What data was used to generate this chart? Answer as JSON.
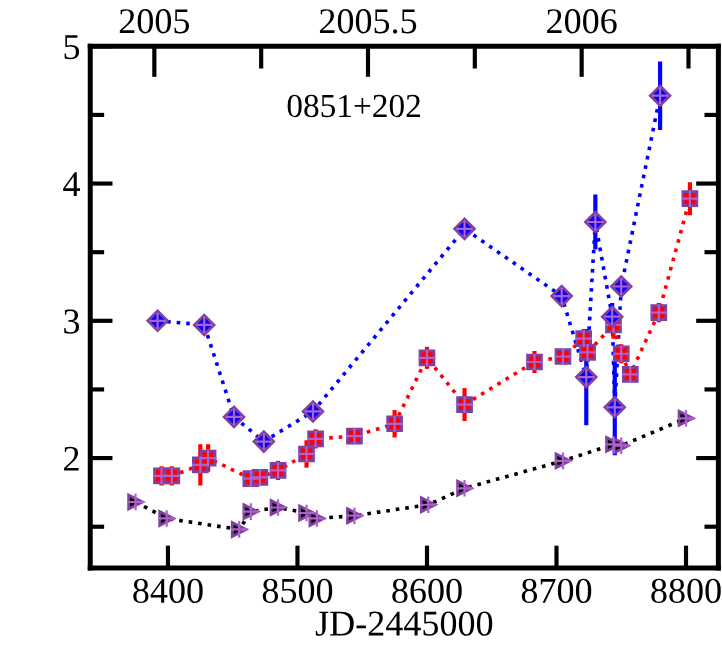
{
  "chart_data": {
    "type": "line",
    "xlabel": "JD-2445000",
    "annotations": [
      "0851+202"
    ],
    "xlim": [
      8340,
      8825
    ],
    "xticks": [
      8400,
      8500,
      8600,
      8700,
      8800
    ],
    "ylim": [
      1.2,
      5
    ],
    "yticks": [
      {
        "value": 1.5,
        "label": null
      },
      2,
      {
        "value": 2.5,
        "label": null
      },
      3,
      {
        "value": 3.5,
        "label": null
      },
      4,
      {
        "value": 4.5,
        "label": null
      },
      5
    ],
    "x2lim": [
      2004.85,
      2006.32
    ],
    "x2ticks": [
      2005,
      {
        "value": 2005.25,
        "label": null
      },
      2005.5,
      {
        "value": 2005.75,
        "label": null
      },
      2006,
      {
        "value": 2006.25,
        "label": null
      }
    ],
    "line_style": "dotted",
    "grid": false,
    "legend": false,
    "series": [
      {
        "color": "#0000ff",
        "marker": "diamond",
        "x": [
          8392,
          8428,
          8451,
          8474,
          8512,
          8629,
          8704,
          8723,
          8730,
          8743,
          8745,
          8750,
          8780
        ],
        "values": [
          3.0,
          2.97,
          2.3,
          2.12,
          2.34,
          3.67,
          3.18,
          2.59,
          3.72,
          3.03,
          2.37,
          3.25,
          4.64
        ],
        "errors": [
          null,
          null,
          null,
          null,
          null,
          null,
          null,
          0.35,
          0.2,
          0.1,
          0.35,
          null,
          0.25
        ]
      },
      {
        "color": "#ff0000",
        "marker": "square",
        "x": [
          8395,
          8403,
          8425,
          8431,
          8464,
          8471,
          8485,
          8507,
          8514,
          8544,
          8575,
          8600,
          8629,
          8683,
          8705,
          8721,
          8724,
          8744,
          8750,
          8757,
          8779,
          8803
        ],
        "values": [
          1.87,
          1.87,
          1.95,
          2.0,
          1.85,
          1.86,
          1.91,
          2.03,
          2.14,
          2.16,
          2.25,
          2.73,
          2.39,
          2.7,
          2.74,
          2.87,
          2.77,
          2.97,
          2.76,
          2.61,
          3.06,
          3.89
        ],
        "errors": [
          0.07,
          0.07,
          0.15,
          0.1,
          null,
          null,
          0.07,
          0.1,
          0.07,
          null,
          0.1,
          0.08,
          0.12,
          0.08,
          null,
          0.07,
          0.07,
          0.1,
          0.07,
          null,
          0.07,
          0.12
        ]
      },
      {
        "color": "#000000",
        "marker": "triangle",
        "x": [
          8375,
          8399,
          8455,
          8464,
          8485,
          8507,
          8515,
          8544,
          8601,
          8629,
          8705,
          8744,
          8750,
          8800
        ],
        "values": [
          1.68,
          1.56,
          1.48,
          1.61,
          1.64,
          1.6,
          1.56,
          1.58,
          1.66,
          1.78,
          1.98,
          2.1,
          2.09,
          2.29
        ]
      }
    ]
  }
}
